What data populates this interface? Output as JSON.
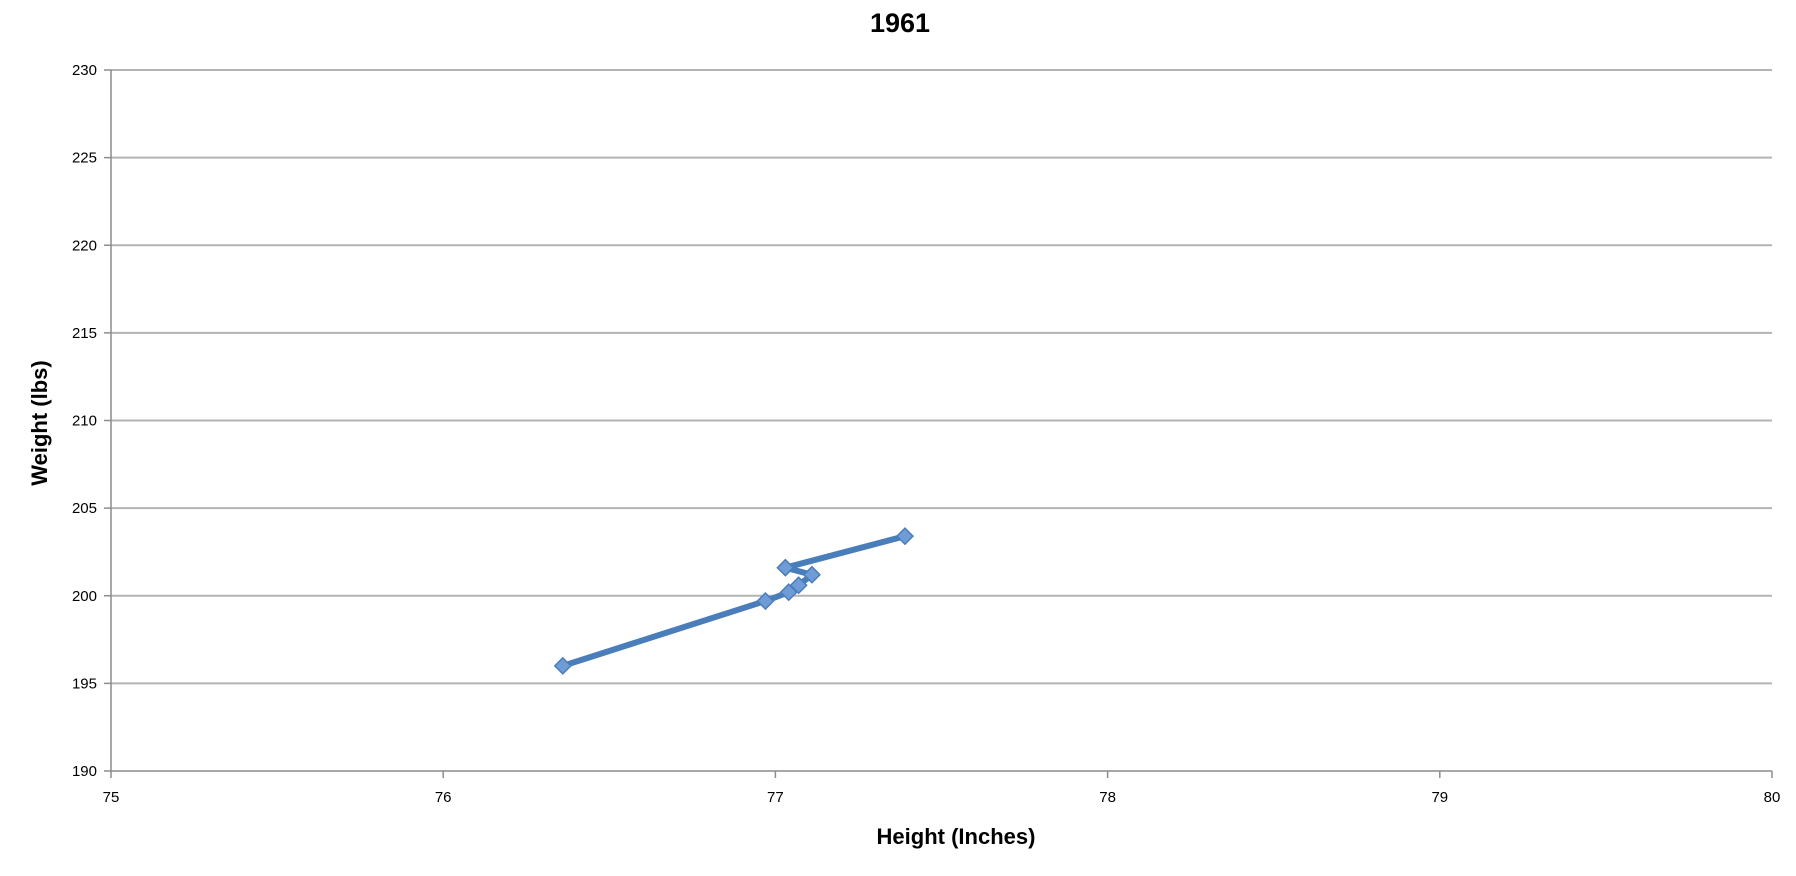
{
  "chart_data": {
    "type": "line",
    "title": "1961",
    "xlabel": "Height (Inches)",
    "ylabel": "Weight (lbs)",
    "xlim": [
      75,
      80
    ],
    "ylim": [
      190,
      230
    ],
    "xticks": [
      75,
      76,
      77,
      78,
      79,
      80
    ],
    "yticks": [
      190,
      195,
      200,
      205,
      210,
      215,
      220,
      225,
      230
    ],
    "grid": "horizontal",
    "legend": "none",
    "series": [
      {
        "color": "#4a7ebb",
        "marker": "diamond",
        "points": [
          {
            "x": 76.36,
            "y": 196.0
          },
          {
            "x": 76.97,
            "y": 199.7
          },
          {
            "x": 77.04,
            "y": 200.2
          },
          {
            "x": 77.07,
            "y": 200.6
          },
          {
            "x": 77.11,
            "y": 201.2
          },
          {
            "x": 77.03,
            "y": 201.6
          },
          {
            "x": 77.39,
            "y": 203.4
          }
        ]
      }
    ]
  }
}
